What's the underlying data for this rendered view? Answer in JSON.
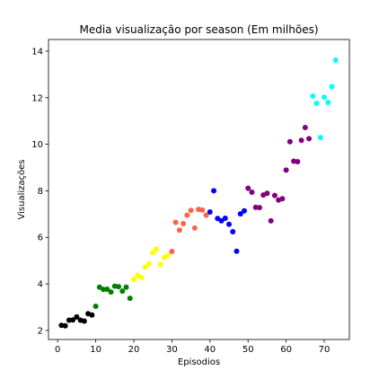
{
  "chart_data": {
    "type": "scatter",
    "title": "Media visualização por season (Em milhões)",
    "x_label": "Episodios",
    "y_label": "Visualizações",
    "xlim": [
      -2.4,
      76.6
    ],
    "ylim": [
      1.61,
      14.5
    ],
    "xticks": [
      0,
      10,
      20,
      30,
      40,
      50,
      60,
      70
    ],
    "yticks": [
      2,
      4,
      6,
      8,
      10,
      12,
      14
    ],
    "series": [
      {
        "color": "#000000",
        "x": [
          1,
          2,
          3,
          4,
          5,
          6,
          7,
          8,
          9
        ],
        "values": [
          2.22,
          2.2,
          2.44,
          2.45,
          2.58,
          2.44,
          2.4,
          2.72,
          2.66
        ]
      },
      {
        "color": "#008000",
        "x": [
          10,
          11,
          12,
          13,
          14,
          15,
          16,
          17,
          18,
          19
        ],
        "values": [
          3.04,
          3.86,
          3.76,
          3.77,
          3.65,
          3.9,
          3.88,
          3.69,
          3.86,
          3.38
        ]
      },
      {
        "color": "#ffff00",
        "x": [
          20,
          21,
          22,
          23,
          24,
          25,
          26,
          27,
          28,
          29
        ],
        "values": [
          4.2,
          4.37,
          4.27,
          4.72,
          4.87,
          5.35,
          5.5,
          4.84,
          5.13,
          5.22
        ]
      },
      {
        "color": "#ff6347",
        "x": [
          30,
          31,
          32,
          33,
          34,
          35,
          36,
          37,
          38,
          39
        ],
        "values": [
          5.39,
          6.64,
          6.31,
          6.59,
          6.95,
          7.16,
          6.4,
          7.2,
          7.17,
          6.95
        ]
      },
      {
        "color": "#0000ff",
        "x": [
          40,
          41,
          42,
          43,
          44,
          45,
          46,
          47,
          48,
          49
        ],
        "values": [
          7.09,
          8.0,
          6.81,
          6.71,
          6.82,
          6.56,
          6.24,
          5.4,
          7.01,
          7.14
        ]
      },
      {
        "color": "#800080",
        "x": [
          50,
          51,
          52,
          53,
          54,
          55,
          56,
          57,
          58,
          59,
          60,
          61,
          62,
          63,
          64,
          65,
          66
        ],
        "values": [
          8.11,
          7.94,
          7.29,
          7.28,
          7.82,
          7.89,
          6.71,
          7.8,
          7.6,
          7.66,
          8.89,
          10.11,
          9.27,
          9.25,
          10.17,
          10.72,
          10.24
        ]
      },
      {
        "color": "#00ffff",
        "x": [
          67,
          68,
          69,
          70,
          71,
          72,
          73
        ],
        "values": [
          12.07,
          11.76,
          10.29,
          12.02,
          11.8,
          12.48,
          13.61
        ]
      }
    ]
  }
}
